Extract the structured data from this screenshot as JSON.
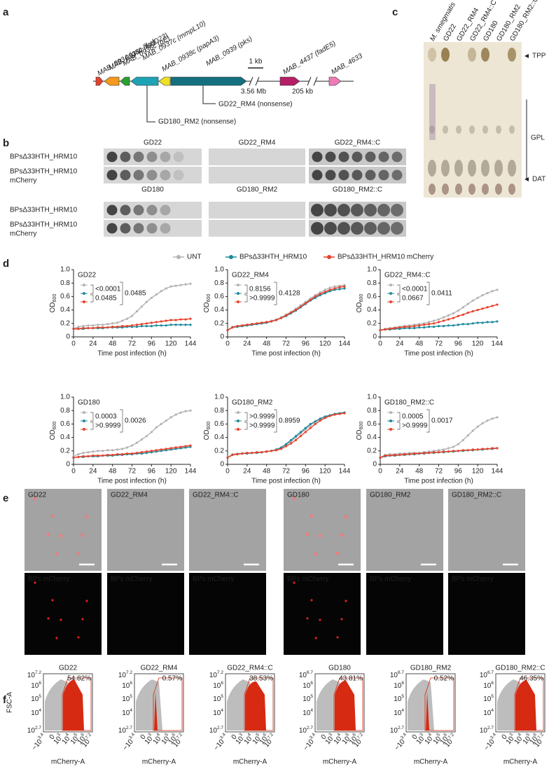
{
  "figure": {
    "panel_letters": [
      "a",
      "b",
      "c",
      "d",
      "e",
      "f"
    ],
    "a": {
      "genes": [
        "MAB_0934 (gap-like)",
        "MAB_0935c (fadD23)",
        "MAB_0936c (pE)",
        "MAB_0937c (mmpL10)",
        "MAB_0938c (papA3)",
        "MAB_0939 (pks)",
        "MAB_4437 (fadE5)",
        "MAB_4633"
      ],
      "scale": "1 kb",
      "distances": [
        "3.56 Mb",
        "205 kb"
      ],
      "mutations": [
        "GD22_RM4 (nonsense)",
        "GD180_RM2 (nonsense)"
      ]
    },
    "b": {
      "strains": [
        "GD22",
        "GD22_RM4",
        "GD22_RM4::C",
        "GD180",
        "GD180_RM2",
        "GD180_RM2::C"
      ],
      "phage": "BPsΔ33HTH_HRM10",
      "reporter": "mCherry"
    },
    "c": {
      "lanes": [
        "M. smegmatis",
        "GD22",
        "GD22_RM4",
        "GD22_RM4::C",
        "GD180",
        "GD180_RM2",
        "GD180_RM2::C"
      ],
      "bands": [
        "TPP",
        "GPL",
        "DAT"
      ]
    },
    "e": {
      "strains": [
        "GD22",
        "GD22_RM4",
        "GD22_RM4::C",
        "GD180",
        "GD180_RM2",
        "GD180_RM2::C"
      ],
      "channel": "BPs mCherry"
    },
    "f": {
      "titles": [
        "GD22",
        "GD22_RM4",
        "GD22_RM4::C",
        "GD180",
        "GD180_RM2",
        "GD180_RM2::C"
      ],
      "gates": [
        "54.82%",
        "0.57%",
        "38.53%",
        "43.81%",
        "0.52%",
        "46.35%"
      ],
      "y_label": "FSC-A",
      "x_label": "mCherry-A",
      "y_ticks_a": [
        {
          "base": "10",
          "exp": "7.2"
        },
        {
          "base": "10",
          "exp": "6"
        },
        {
          "base": "10",
          "exp": "5"
        },
        {
          "base": "10",
          "exp": "4"
        },
        {
          "base": "10",
          "exp": "2.7"
        }
      ],
      "y_ticks_b": [
        {
          "base": "10",
          "exp": "6.7"
        },
        {
          "base": "10",
          "exp": "6"
        },
        {
          "base": "10",
          "exp": "5"
        },
        {
          "base": "10",
          "exp": "4"
        },
        {
          "base": "10",
          "exp": "2.7"
        }
      ],
      "x_ticks": [
        {
          "base": "−10",
          "exp": "3.4"
        },
        {
          "base": "0"
        },
        {
          "base": "10",
          "exp": "3"
        },
        {
          "base": "10",
          "exp": "4"
        },
        {
          "base": "10",
          "exp": "5"
        },
        {
          "base": "10",
          "exp": "6"
        },
        {
          "base": "10",
          "exp": "7.2"
        }
      ]
    }
  },
  "chart_data": [
    {
      "type": "line",
      "title": "GD22",
      "x": [
        0,
        6,
        12,
        18,
        24,
        30,
        36,
        42,
        48,
        54,
        60,
        66,
        72,
        78,
        84,
        90,
        96,
        102,
        108,
        114,
        120,
        126,
        132,
        138,
        144
      ],
      "xlim": [
        0,
        144
      ],
      "ylim": [
        0,
        1
      ],
      "xticks": [
        0,
        24,
        48,
        72,
        96,
        120,
        144
      ],
      "yticks": [
        0,
        0.2,
        0.4,
        0.6,
        0.8,
        {
          "value": 1,
          "label": "1.0"
        }
      ],
      "x_label": "Time post infection (h)",
      "y_label": {
        "text": "OD",
        "sub": "600"
      },
      "annotations": [
        "<0.0001",
        "0.0485",
        "0.0485"
      ],
      "series": [
        {
          "name": "UNT",
          "color": "#b3b3b3",
          "values": [
            0.12,
            0.15,
            0.16,
            0.17,
            0.17,
            0.18,
            0.18,
            0.19,
            0.2,
            0.21,
            0.24,
            0.27,
            0.31,
            0.38,
            0.45,
            0.52,
            0.58,
            0.63,
            0.68,
            0.72,
            0.75,
            0.76,
            0.77,
            0.78,
            0.79
          ]
        },
        {
          "name": "BPsΔ33HTH_HRM10",
          "color": "#1b8a9b",
          "values": [
            0.12,
            0.12,
            0.12,
            0.13,
            0.13,
            0.13,
            0.13,
            0.14,
            0.14,
            0.14,
            0.14,
            0.15,
            0.15,
            0.15,
            0.16,
            0.16,
            0.16,
            0.17,
            0.17,
            0.17,
            0.18,
            0.18,
            0.18,
            0.18,
            0.18
          ]
        },
        {
          "name": "BPsΔ33HTH_HRM10 mCherry",
          "color": "#e8412b",
          "values": [
            0.12,
            0.12,
            0.13,
            0.13,
            0.13,
            0.14,
            0.14,
            0.14,
            0.15,
            0.15,
            0.16,
            0.16,
            0.17,
            0.18,
            0.19,
            0.2,
            0.21,
            0.22,
            0.23,
            0.24,
            0.25,
            0.25,
            0.26,
            0.26,
            0.27
          ]
        }
      ]
    },
    {
      "type": "line",
      "title": "GD22_RM4",
      "x": [
        0,
        6,
        12,
        18,
        24,
        30,
        36,
        42,
        48,
        54,
        60,
        66,
        72,
        78,
        84,
        90,
        96,
        102,
        108,
        114,
        120,
        126,
        132,
        138,
        144
      ],
      "xlim": [
        0,
        144
      ],
      "ylim": [
        0,
        1
      ],
      "xticks": [
        0,
        24,
        48,
        72,
        96,
        120,
        144
      ],
      "yticks": [
        0,
        0.2,
        0.4,
        0.6,
        0.8,
        {
          "value": 1,
          "label": "1.0"
        }
      ],
      "x_label": "Time post infection (h)",
      "y_label": {
        "text": "OD",
        "sub": "600"
      },
      "annotations": [
        "0.8156",
        ">0.9999",
        "0.4128"
      ],
      "series": [
        {
          "name": "UNT",
          "color": "#b3b3b3",
          "values": [
            0.1,
            0.15,
            0.16,
            0.17,
            0.18,
            0.19,
            0.2,
            0.21,
            0.22,
            0.24,
            0.26,
            0.29,
            0.33,
            0.37,
            0.42,
            0.47,
            0.52,
            0.57,
            0.62,
            0.66,
            0.7,
            0.73,
            0.75,
            0.76,
            0.77
          ]
        },
        {
          "name": "BPsΔ33HTH_HRM10",
          "color": "#1b8a9b",
          "values": [
            0.1,
            0.14,
            0.15,
            0.16,
            0.17,
            0.18,
            0.19,
            0.2,
            0.21,
            0.23,
            0.25,
            0.28,
            0.31,
            0.35,
            0.39,
            0.44,
            0.49,
            0.54,
            0.58,
            0.62,
            0.65,
            0.68,
            0.7,
            0.71,
            0.72
          ]
        },
        {
          "name": "BPsΔ33HTH_HRM10 mCherry",
          "color": "#e8412b",
          "values": [
            0.1,
            0.14,
            0.16,
            0.17,
            0.18,
            0.19,
            0.2,
            0.21,
            0.22,
            0.23,
            0.25,
            0.28,
            0.32,
            0.36,
            0.4,
            0.45,
            0.5,
            0.55,
            0.6,
            0.64,
            0.67,
            0.7,
            0.72,
            0.74,
            0.75
          ]
        }
      ]
    },
    {
      "type": "line",
      "title": "GD22_RM4::C",
      "x": [
        0,
        6,
        12,
        18,
        24,
        30,
        36,
        42,
        48,
        54,
        60,
        66,
        72,
        78,
        84,
        90,
        96,
        102,
        108,
        114,
        120,
        126,
        132,
        138,
        144
      ],
      "xlim": [
        0,
        144
      ],
      "ylim": [
        0,
        1
      ],
      "xticks": [
        0,
        24,
        48,
        72,
        96,
        120,
        144
      ],
      "yticks": [
        0,
        0.2,
        0.4,
        0.6,
        0.8,
        {
          "value": 1,
          "label": "1.0"
        }
      ],
      "x_label": "Time post infection (h)",
      "y_label": {
        "text": "OD",
        "sub": "600"
      },
      "annotations": [
        "<0.0001",
        "0.0667",
        "0.0411"
      ],
      "series": [
        {
          "name": "UNT",
          "color": "#b3b3b3",
          "values": [
            0.1,
            0.12,
            0.13,
            0.14,
            0.15,
            0.16,
            0.17,
            0.18,
            0.19,
            0.2,
            0.22,
            0.24,
            0.26,
            0.29,
            0.32,
            0.35,
            0.39,
            0.44,
            0.49,
            0.54,
            0.58,
            0.62,
            0.65,
            0.68,
            0.7
          ]
        },
        {
          "name": "BPsΔ33HTH_HRM10",
          "color": "#1b8a9b",
          "values": [
            0.1,
            0.11,
            0.11,
            0.12,
            0.12,
            0.13,
            0.13,
            0.13,
            0.14,
            0.14,
            0.15,
            0.15,
            0.16,
            0.16,
            0.17,
            0.17,
            0.18,
            0.19,
            0.19,
            0.2,
            0.21,
            0.21,
            0.22,
            0.22,
            0.23
          ]
        },
        {
          "name": "BPsΔ33HTH_HRM10 mCherry",
          "color": "#e8412b",
          "values": [
            0.1,
            0.11,
            0.12,
            0.13,
            0.14,
            0.15,
            0.15,
            0.16,
            0.17,
            0.18,
            0.19,
            0.2,
            0.22,
            0.24,
            0.26,
            0.28,
            0.31,
            0.33,
            0.36,
            0.38,
            0.4,
            0.42,
            0.44,
            0.46,
            0.48
          ]
        }
      ]
    },
    {
      "type": "line",
      "title": "GD180",
      "x": [
        0,
        6,
        12,
        18,
        24,
        30,
        36,
        42,
        48,
        54,
        60,
        66,
        72,
        78,
        84,
        90,
        96,
        102,
        108,
        114,
        120,
        126,
        132,
        138,
        144
      ],
      "xlim": [
        0,
        144
      ],
      "ylim": [
        0,
        1
      ],
      "xticks": [
        0,
        24,
        48,
        72,
        96,
        120,
        144
      ],
      "yticks": [
        0,
        0.2,
        0.4,
        0.6,
        0.8,
        {
          "value": 1,
          "label": "1.0"
        }
      ],
      "x_label": "Time post infection (h)",
      "y_label": {
        "text": "OD",
        "sub": "600"
      },
      "annotations": [
        "0.0003",
        ">0.9999",
        "0.0026"
      ],
      "series": [
        {
          "name": "UNT",
          "color": "#b3b3b3",
          "values": [
            0.12,
            0.15,
            0.17,
            0.18,
            0.19,
            0.2,
            0.2,
            0.21,
            0.21,
            0.22,
            0.23,
            0.25,
            0.28,
            0.32,
            0.37,
            0.42,
            0.48,
            0.55,
            0.6,
            0.65,
            0.7,
            0.74,
            0.77,
            0.79,
            0.8
          ]
        },
        {
          "name": "BPsΔ33HTH_HRM10",
          "color": "#1b8a9b",
          "values": [
            0.1,
            0.11,
            0.11,
            0.12,
            0.12,
            0.12,
            0.13,
            0.13,
            0.13,
            0.14,
            0.14,
            0.15,
            0.15,
            0.16,
            0.16,
            0.17,
            0.18,
            0.19,
            0.2,
            0.21,
            0.22,
            0.23,
            0.24,
            0.25,
            0.26
          ]
        },
        {
          "name": "BPsΔ33HTH_HRM10 mCherry",
          "color": "#e8412b",
          "values": [
            0.1,
            0.11,
            0.12,
            0.12,
            0.13,
            0.13,
            0.13,
            0.14,
            0.14,
            0.15,
            0.15,
            0.16,
            0.16,
            0.17,
            0.18,
            0.19,
            0.2,
            0.21,
            0.22,
            0.23,
            0.24,
            0.25,
            0.26,
            0.27,
            0.28
          ]
        }
      ]
    },
    {
      "type": "line",
      "title": "GD180_RM2",
      "x": [
        0,
        6,
        12,
        18,
        24,
        30,
        36,
        42,
        48,
        54,
        60,
        66,
        72,
        78,
        84,
        90,
        96,
        102,
        108,
        114,
        120,
        126,
        132,
        138,
        144
      ],
      "xlim": [
        0,
        144
      ],
      "ylim": [
        0,
        1
      ],
      "xticks": [
        0,
        24,
        48,
        72,
        96,
        120,
        144
      ],
      "yticks": [
        0,
        0.2,
        0.4,
        0.6,
        0.8,
        {
          "value": 1,
          "label": "1.0"
        }
      ],
      "x_label": "Time post infection (h)",
      "y_label": {
        "text": "OD",
        "sub": "600"
      },
      "annotations": [
        ">0.9999",
        ">0.9999",
        "0.8959"
      ],
      "series": [
        {
          "name": "UNT",
          "color": "#b3b3b3",
          "values": [
            0.1,
            0.15,
            0.16,
            0.16,
            0.17,
            0.17,
            0.18,
            0.18,
            0.19,
            0.2,
            0.22,
            0.25,
            0.29,
            0.34,
            0.4,
            0.46,
            0.52,
            0.58,
            0.63,
            0.67,
            0.71,
            0.73,
            0.75,
            0.76,
            0.77
          ]
        },
        {
          "name": "BPsΔ33HTH_HRM10",
          "color": "#1b8a9b",
          "values": [
            0.1,
            0.14,
            0.15,
            0.16,
            0.16,
            0.17,
            0.17,
            0.18,
            0.19,
            0.2,
            0.22,
            0.25,
            0.3,
            0.36,
            0.42,
            0.48,
            0.54,
            0.6,
            0.64,
            0.68,
            0.71,
            0.73,
            0.75,
            0.76,
            0.77
          ]
        },
        {
          "name": "BPsΔ33HTH_HRM10 mCherry",
          "color": "#e8412b",
          "values": [
            0.1,
            0.14,
            0.15,
            0.16,
            0.17,
            0.17,
            0.18,
            0.18,
            0.19,
            0.2,
            0.21,
            0.23,
            0.27,
            0.31,
            0.36,
            0.42,
            0.48,
            0.54,
            0.6,
            0.65,
            0.69,
            0.72,
            0.74,
            0.75,
            0.76
          ]
        }
      ]
    },
    {
      "type": "line",
      "title": "GD180_RM2::C",
      "x": [
        0,
        6,
        12,
        18,
        24,
        30,
        36,
        42,
        48,
        54,
        60,
        66,
        72,
        78,
        84,
        90,
        96,
        102,
        108,
        114,
        120,
        126,
        132,
        138,
        144
      ],
      "xlim": [
        0,
        144
      ],
      "ylim": [
        0,
        1
      ],
      "xticks": [
        0,
        24,
        48,
        72,
        96,
        120,
        144
      ],
      "yticks": [
        0,
        0.2,
        0.4,
        0.6,
        0.8,
        {
          "value": 1,
          "label": "1.0"
        }
      ],
      "x_label": "Time post infection (h)",
      "y_label": {
        "text": "OD",
        "sub": "600"
      },
      "annotations": [
        "0.0005",
        ">0.9999",
        "0.0017"
      ],
      "series": [
        {
          "name": "UNT",
          "color": "#b3b3b3",
          "values": [
            0.1,
            0.14,
            0.15,
            0.15,
            0.16,
            0.16,
            0.17,
            0.17,
            0.17,
            0.18,
            0.19,
            0.2,
            0.21,
            0.22,
            0.24,
            0.26,
            0.3,
            0.36,
            0.43,
            0.5,
            0.56,
            0.61,
            0.65,
            0.68,
            0.7
          ]
        },
        {
          "name": "BPsΔ33HTH_HRM10",
          "color": "#1b8a9b",
          "values": [
            0.1,
            0.12,
            0.13,
            0.13,
            0.14,
            0.14,
            0.15,
            0.15,
            0.16,
            0.16,
            0.17,
            0.17,
            0.18,
            0.18,
            0.19,
            0.19,
            0.2,
            0.2,
            0.21,
            0.21,
            0.22,
            0.22,
            0.23,
            0.23,
            0.24
          ]
        },
        {
          "name": "BPsΔ33HTH_HRM10 mCherry",
          "color": "#e8412b",
          "values": [
            0.1,
            0.13,
            0.13,
            0.14,
            0.14,
            0.15,
            0.15,
            0.16,
            0.16,
            0.17,
            0.17,
            0.18,
            0.18,
            0.19,
            0.19,
            0.2,
            0.2,
            0.21,
            0.21,
            0.22,
            0.22,
            0.23,
            0.23,
            0.24,
            0.24
          ]
        }
      ]
    }
  ]
}
